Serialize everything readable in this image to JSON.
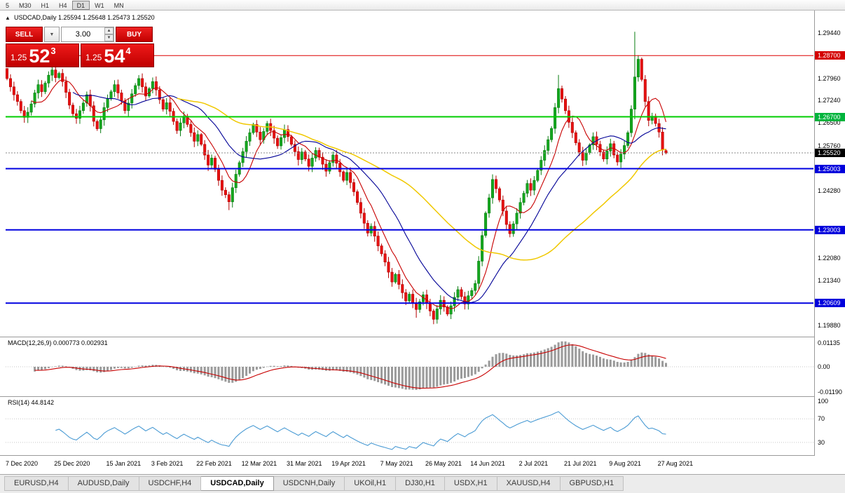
{
  "toolbar": {
    "timeframes": [
      "5",
      "M30",
      "H1",
      "H4",
      "D1",
      "W1",
      "MN"
    ],
    "active": "D1"
  },
  "chart_header": {
    "symbol_ohlc": "USDCAD,Daily 1.25594 1.25648 1.25473 1.25520"
  },
  "trade_panel": {
    "sell_label": "SELL",
    "buy_label": "BUY",
    "volume": "3.00",
    "sell_price": {
      "prefix": "1.25",
      "big": "52",
      "sup": "3"
    },
    "buy_price": {
      "prefix": "1.25",
      "big": "54",
      "sup": "4"
    }
  },
  "indicators": {
    "macd_label": "MACD(12,26,9) 0.000773 0.002931",
    "rsi_label": "RSI(14) 44.8142"
  },
  "price_axis": {
    "ticks": [
      {
        "label": "1.29440",
        "price": 1.2944
      },
      {
        "label": "1.27960",
        "price": 1.2796
      },
      {
        "label": "1.27240",
        "price": 1.2724
      },
      {
        "label": "1.26500",
        "price": 1.265
      },
      {
        "label": "1.25760",
        "price": 1.2576
      },
      {
        "label": "1.24280",
        "price": 1.2428
      },
      {
        "label": "1.22080",
        "price": 1.2208
      },
      {
        "label": "1.21340",
        "price": 1.2134
      },
      {
        "label": "1.19880",
        "price": 1.1988
      }
    ],
    "badges": [
      {
        "label": "1.28700",
        "price": 1.287,
        "color": "#d40000"
      },
      {
        "label": "1.26700",
        "price": 1.267,
        "color": "#00b43c"
      },
      {
        "label": "1.25520",
        "price": 1.2552,
        "color": "#000000"
      },
      {
        "label": "1.25003",
        "price": 1.25003,
        "color": "#0000dc"
      },
      {
        "label": "1.23003",
        "price": 1.23003,
        "color": "#0000dc"
      },
      {
        "label": "1.20609",
        "price": 1.20609,
        "color": "#0000dc"
      }
    ]
  },
  "macd_axis": [
    {
      "label": "0.01135",
      "value": 0.01135
    },
    {
      "label": "0.00",
      "value": 0
    },
    {
      "label": "-0.01190",
      "value": -0.0119
    }
  ],
  "rsi_axis": [
    {
      "label": "100",
      "value": 100
    },
    {
      "label": "70",
      "value": 70
    },
    {
      "label": "30",
      "value": 30
    }
  ],
  "time_axis": [
    {
      "label": "7 Dec 2020",
      "day": 0
    },
    {
      "label": "25 Dec 2020",
      "day": 14
    },
    {
      "label": "15 Jan 2021",
      "day": 29
    },
    {
      "label": "3 Feb 2021",
      "day": 42
    },
    {
      "label": "22 Feb 2021",
      "day": 55
    },
    {
      "label": "12 Mar 2021",
      "day": 68
    },
    {
      "label": "31 Mar 2021",
      "day": 81
    },
    {
      "label": "19 Apr 2021",
      "day": 94
    },
    {
      "label": "7 May 2021",
      "day": 108
    },
    {
      "label": "26 May 2021",
      "day": 121
    },
    {
      "label": "14 Jun 2021",
      "day": 134
    },
    {
      "label": "2 Jul 2021",
      "day": 148
    },
    {
      "label": "21 Jul 2021",
      "day": 161
    },
    {
      "label": "9 Aug 2021",
      "day": 174
    },
    {
      "label": "27 Aug 2021",
      "day": 188
    }
  ],
  "tabs": {
    "items": [
      "EURUSD,H4",
      "AUDUSD,Daily",
      "USDCHF,H4",
      "USDCAD,Daily",
      "USDCNH,Daily",
      "UKOil,H1",
      "DJ30,H1",
      "USDX,H1",
      "XAUUSD,H4",
      "GBPUSD,H1"
    ],
    "active_index": 3
  },
  "chart_data": {
    "type": "candlestick",
    "symbol": "USDCAD",
    "timeframe": "Daily",
    "title": "USDCAD,Daily",
    "last_ohlc": {
      "open": 1.25594,
      "high": 1.25648,
      "low": 1.25473,
      "close": 1.2552
    },
    "y_axis": {
      "min": 1.1951,
      "max": 1.3001
    },
    "closes": [
      1.2795,
      1.2768,
      1.2742,
      1.272,
      1.269,
      1.2668,
      1.2685,
      1.2712,
      1.2748,
      1.2775,
      1.2752,
      1.278,
      1.2806,
      1.2823,
      1.2798,
      1.2812,
      1.2785,
      1.275,
      1.2708,
      1.268,
      1.2665,
      1.269,
      1.2715,
      1.2742,
      1.2706,
      1.2655,
      1.2631,
      1.266,
      1.27,
      1.273,
      1.2752,
      1.2775,
      1.2748,
      1.2722,
      1.269,
      1.2715,
      1.2745,
      1.2772,
      1.2795,
      1.2768,
      1.2738,
      1.2762,
      1.2785,
      1.2758,
      1.2726,
      1.2695,
      1.2716,
      1.2688,
      1.2655,
      1.2625,
      1.265,
      1.2672,
      1.2645,
      1.2618,
      1.259,
      1.2612,
      1.258,
      1.2545,
      1.2512,
      1.2535,
      1.2498,
      1.2462,
      1.243,
      1.2415,
      1.2392,
      1.2438,
      1.2482,
      1.252,
      1.2556,
      1.259,
      1.2618,
      1.2645,
      1.262,
      1.2595,
      1.2622,
      1.2648,
      1.2625,
      1.26,
      1.2575,
      1.2602,
      1.2628,
      1.2605,
      1.258,
      1.2556,
      1.253,
      1.2555,
      1.2532,
      1.2508,
      1.2535,
      1.256,
      1.2538,
      1.2515,
      1.2492,
      1.252,
      1.2545,
      1.2518,
      1.249,
      1.2462,
      1.2488,
      1.2455,
      1.2425,
      1.239,
      1.2355,
      1.2322,
      1.229,
      1.2312,
      1.228,
      1.2248,
      1.2222,
      1.2195,
      1.2162,
      1.213,
      1.2155,
      1.2122,
      1.2095,
      1.2068,
      1.209,
      1.2062,
      1.204,
      1.2065,
      1.2088,
      1.206,
      1.2035,
      1.2008,
      1.2042,
      1.207,
      1.2048,
      1.2025,
      1.2052,
      1.208,
      1.2105,
      1.2082,
      1.2058,
      1.2085,
      1.2102,
      1.2125,
      1.2198,
      1.2282,
      1.2355,
      1.2405,
      1.2465,
      1.2435,
      1.2398,
      1.2362,
      1.2318,
      1.2288,
      1.232,
      1.2355,
      1.239,
      1.242,
      1.2452,
      1.243,
      1.2462,
      1.2495,
      1.2528,
      1.256,
      1.2595,
      1.2632,
      1.27,
      1.2762,
      1.2728,
      1.269,
      1.2652,
      1.2618,
      1.2585,
      1.2555,
      1.2528,
      1.2552,
      1.2578,
      1.2605,
      1.258,
      1.2555,
      1.2532,
      1.2558,
      1.2582,
      1.2545,
      1.2522,
      1.2548,
      1.2576,
      1.2618,
      1.2695,
      1.28,
      1.2858,
      1.2792,
      1.272,
      1.2658,
      1.2672,
      1.2648,
      1.262,
      1.2562,
      1.2552
    ],
    "ohlc_overrides": {
      "0": {
        "o": 1.2828
      },
      "64": {
        "l": 1.2365
      },
      "118": {
        "l": 1.2013
      },
      "123": {
        "l": 1.1992
      },
      "159": {
        "h": 1.2807
      },
      "181": {
        "h": 1.2948,
        "l": 1.2662
      },
      "190": {
        "o": 1.25594,
        "h": 1.25648,
        "l": 1.25473
      }
    },
    "levels": [
      {
        "price": 1.287,
        "color": "#dd0000",
        "width": 1
      },
      {
        "price": 1.267,
        "color": "#00cc00",
        "width": 2
      },
      {
        "price": 1.25003,
        "color": "#0000e0",
        "width": 2
      },
      {
        "price": 1.23003,
        "color": "#0000e0",
        "width": 2
      },
      {
        "price": 1.20609,
        "color": "#0000e0",
        "width": 2
      }
    ],
    "last_price_line": 1.2552,
    "moving_averages": [
      {
        "period": 8,
        "color": "#c80000"
      },
      {
        "period": 20,
        "color": "#000096"
      },
      {
        "period": 50,
        "color": "#f0c800"
      }
    ],
    "macd": {
      "fast": 12,
      "slow": 26,
      "signal": 9,
      "value": 0.000773,
      "signal_value": 0.002931,
      "histogram_color": "#9a9a9a",
      "signal_color": "#c80000"
    },
    "rsi": {
      "period": 14,
      "value": 44.8142,
      "color": "#4a9bd4",
      "levels": [
        30,
        70
      ]
    },
    "candle_colors": {
      "up": "#15a81f",
      "up_stroke": "#0a7d12",
      "down": "#e81212",
      "down_stroke": "#b30000"
    }
  }
}
